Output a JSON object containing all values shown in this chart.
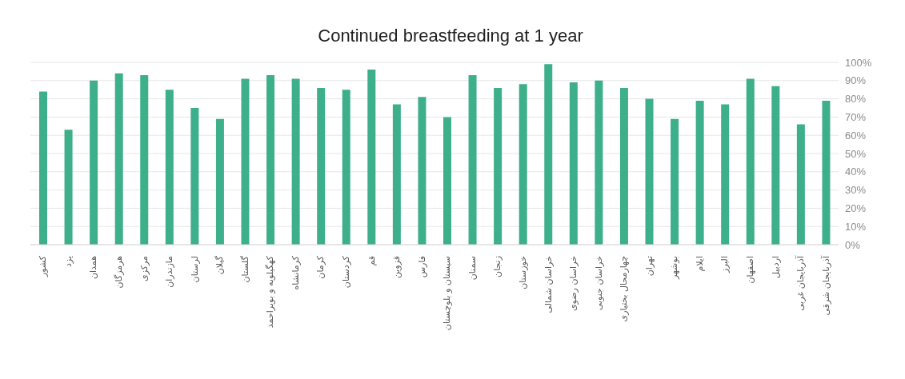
{
  "chart_data": {
    "type": "bar",
    "title": "Continued breastfeeding at 1 year",
    "categories": [
      "کشور",
      "یزد",
      "همدان",
      "هرمزگان",
      "مرکزی",
      "مازندران",
      "لرستان",
      "گیلان",
      "گلستان",
      "کهگیلویه و بویراحمد",
      "کرمانشاه",
      "کرمان",
      "کردستان",
      "قم",
      "قزوین",
      "فارس",
      "سیستان و بلوچستان",
      "سمنان",
      "زنجان",
      "خوزستان",
      "خراسان شمالی",
      "خراسان رضوی",
      "خراسان جنوبی",
      "چهارمحال بختیاری",
      "تهران",
      "بوشهر",
      "ایلام",
      "البرز",
      "اصفهان",
      "اردبیل",
      "آذربایجان غربی",
      "آذربایجان شرقی"
    ],
    "values": [
      84,
      63,
      90,
      94,
      93,
      85,
      75,
      69,
      91,
      93,
      91,
      86,
      85,
      96,
      77,
      81,
      70,
      93,
      86,
      88,
      99,
      89,
      90,
      86,
      80,
      69,
      79,
      77,
      91,
      87,
      66,
      79
    ],
    "color": "#3daf8a",
    "ylim": [
      0,
      100
    ],
    "yticks": [
      {
        "value": 0,
        "label": "0%"
      },
      {
        "value": 10,
        "label": "10%"
      },
      {
        "value": 20,
        "label": "20%"
      },
      {
        "value": 30,
        "label": "30%"
      },
      {
        "value": 40,
        "label": "40%"
      },
      {
        "value": 50,
        "label": "50%"
      },
      {
        "value": 60,
        "label": "60%"
      },
      {
        "value": 70,
        "label": "70%"
      },
      {
        "value": 80,
        "label": "80%"
      },
      {
        "value": 90,
        "label": "90%"
      },
      {
        "value": 100,
        "label": "100%"
      }
    ],
    "grid": "y"
  }
}
